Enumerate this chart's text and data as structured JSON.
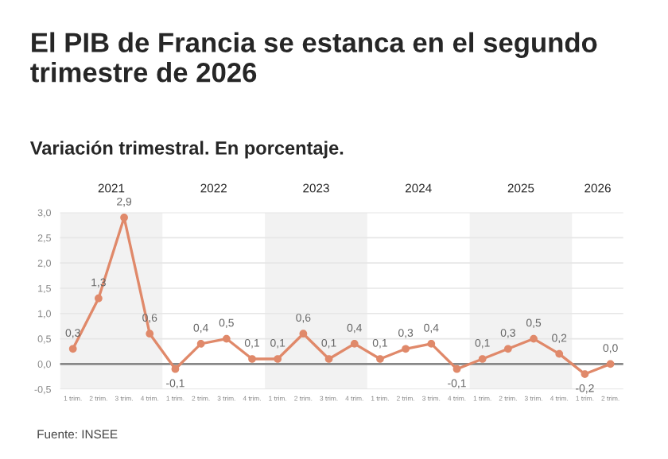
{
  "chart_data": {
    "type": "line",
    "title": "El PIB de Francia se estanca en el segundo trimestre de 2026",
    "subtitle": "Variación trimestral. En porcentaje.",
    "categories": [
      "1 trim.",
      "2 trim.",
      "3 trim.",
      "4 trim.",
      "1 trim.",
      "2 trim.",
      "3 trim.",
      "4 trim.",
      "1 trim.",
      "2 trim.",
      "3 trim.",
      "4 trim.",
      "1 trim.",
      "2 trim.",
      "3 trim.",
      "4 trim.",
      "1 trim.",
      "2 trim.",
      "3 trim.",
      "4 trim.",
      "1 trim.",
      "2 trim."
    ],
    "series": [
      {
        "color": "#e0896a",
        "values": [
          0.3,
          1.3,
          2.9,
          0.6,
          -0.1,
          0.4,
          0.5,
          0.1,
          0.1,
          0.6,
          0.1,
          0.4,
          0.1,
          0.3,
          0.4,
          -0.1,
          0.1,
          0.3,
          0.5,
          0.2,
          -0.2,
          0.0
        ],
        "value_labels": [
          "0,3",
          "1,3",
          "2,9",
          "0,6",
          "-0,1",
          "0,4",
          "0,5",
          "0,1",
          "0,1",
          "0,6",
          "0,1",
          "0,4",
          "0,1",
          "0,3",
          "0,4",
          "-0,1",
          "0,1",
          "0,3",
          "0,5",
          "0,2",
          "-0,2",
          "0,0"
        ]
      }
    ],
    "ylim": [
      -0.5,
      3.0
    ],
    "yticks": [
      {
        "value": -0.5,
        "label": "-0,5"
      },
      {
        "value": 0,
        "label": "0,0"
      },
      {
        "value": 0.5,
        "label": "0,5"
      },
      {
        "value": 1,
        "label": "1,0"
      },
      {
        "value": 1.5,
        "label": "1,5"
      },
      {
        "value": 2,
        "label": "2,0"
      },
      {
        "value": 2.5,
        "label": "2,5"
      },
      {
        "value": 3,
        "label": "3,0"
      }
    ],
    "ref_lines": [
      {
        "axis": "y",
        "value": 0,
        "color": "#888888"
      }
    ],
    "annotations": [
      "2021",
      "2022",
      "2023",
      "2024",
      "2025",
      "2026",
      "Fuente: INSEE"
    ],
    "grid": "y",
    "marker": "circle",
    "line_style": "solid",
    "legend": false
  }
}
